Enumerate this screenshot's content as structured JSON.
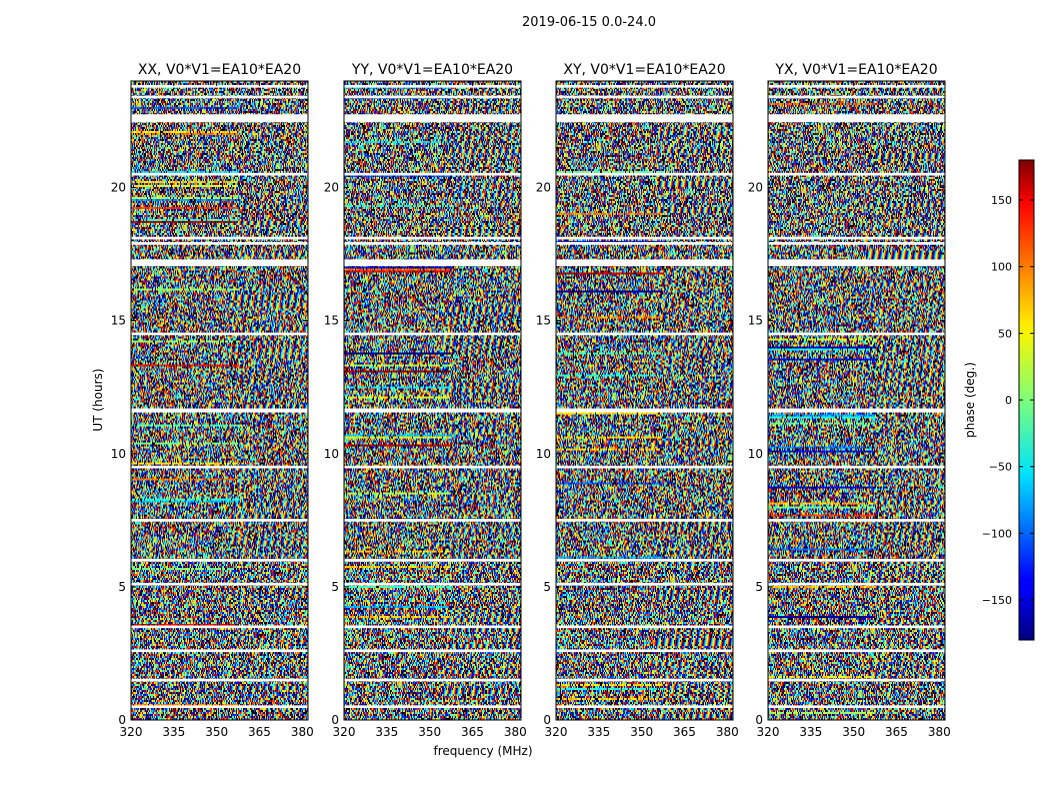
{
  "suptitle": "2019-06-15 0.0-24.0",
  "chart_data": {
    "type": "heatmap",
    "quantity": "visibility phase",
    "ylabel": "UT (hours)",
    "xlabel": "frequency (MHz)",
    "xlim": [
      320,
      382
    ],
    "ylim": [
      0,
      24
    ],
    "xticks": [
      320,
      335,
      350,
      365,
      380
    ],
    "yticks": [
      0,
      5,
      10,
      15,
      20
    ],
    "colorbar": {
      "label": "phase (deg.)",
      "range": [
        -180,
        180
      ],
      "ticks": [
        150,
        100,
        50,
        0,
        -50,
        -100,
        -150
      ],
      "tick_labels": [
        "150",
        "100",
        "50",
        "0",
        "−50",
        "−100",
        "−150"
      ],
      "colormap": "jet"
    },
    "panels": [
      {
        "title": "XX, V0*V1=EA10*EA20",
        "polarization": "XX"
      },
      {
        "title": "YY, V0*V1=EA10*EA20",
        "polarization": "YY"
      },
      {
        "title": "XY, V0*V1=EA10*EA20",
        "polarization": "XY"
      },
      {
        "title": "YX, V0*V1=EA10*EA20",
        "polarization": "YX"
      }
    ],
    "data_gaps_ut_hours": [
      [
        0.45,
        0.55
      ],
      [
        1.45,
        1.55
      ],
      [
        2.55,
        2.65
      ],
      [
        3.45,
        3.55
      ],
      [
        5.05,
        5.15
      ],
      [
        5.95,
        6.05
      ],
      [
        7.45,
        7.55
      ],
      [
        9.45,
        9.55
      ],
      [
        11.55,
        11.7
      ],
      [
        14.45,
        14.55
      ],
      [
        17.05,
        17.3
      ],
      [
        17.85,
        17.95
      ],
      [
        18.05,
        18.15
      ],
      [
        20.45,
        20.55
      ],
      [
        22.45,
        22.75
      ],
      [
        23.35,
        23.45
      ],
      [
        23.75,
        23.85
      ]
    ]
  }
}
